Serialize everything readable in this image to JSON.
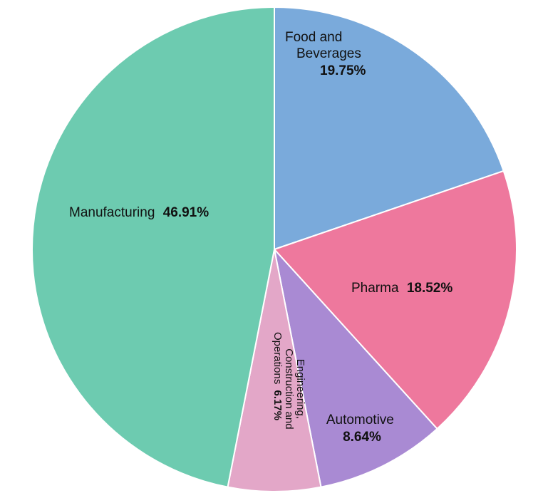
{
  "chart_data": {
    "type": "pie",
    "slices": [
      {
        "name": "Food and Beverages",
        "name_lines": [
          "Food and",
          "Beverages"
        ],
        "value": 19.75,
        "label": "19.75%",
        "color": "#7aaadb"
      },
      {
        "name": "Pharma",
        "name_lines": [
          "Pharma"
        ],
        "value": 18.52,
        "label": "18.52%",
        "color": "#ee789d"
      },
      {
        "name": "Automotive",
        "name_lines": [
          "Automotive"
        ],
        "value": 8.64,
        "label": "8.64%",
        "color": "#a98ad3"
      },
      {
        "name": "Engineering, Construction and Operations",
        "name_lines": [
          "Engineering,",
          "Construction and",
          "Operations"
        ],
        "value": 6.17,
        "label": "6.17%",
        "color": "#e3a7c8"
      },
      {
        "name": "Manufacturing",
        "name_lines": [
          "Manufacturing"
        ],
        "value": 46.91,
        "label": "46.91%",
        "color": "#6dcbb0"
      }
    ]
  }
}
